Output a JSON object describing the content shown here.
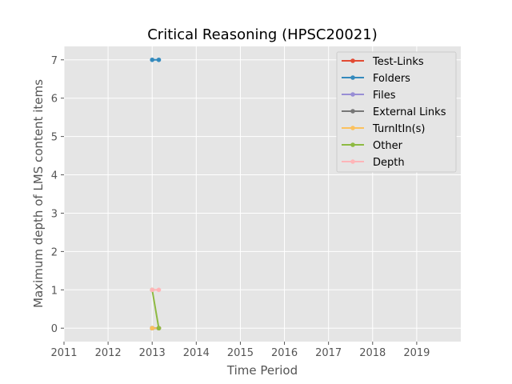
{
  "chart_data": {
    "type": "line",
    "title": "Critical Reasoning (HPSC20021)",
    "xlabel": "Time Period",
    "ylabel": "Maximum depth of LMS content items",
    "xlim": [
      2011,
      2020
    ],
    "ylim": [
      -0.35,
      7.35
    ],
    "x_ticks": [
      "2011",
      "2012",
      "2013",
      "2014",
      "2015",
      "2016",
      "2017",
      "2018",
      "2019"
    ],
    "y_ticks": [
      "0",
      "1",
      "2",
      "3",
      "4",
      "5",
      "6",
      "7"
    ],
    "grid": true,
    "legend_position": "top-right",
    "series": [
      {
        "name": "Test-Links",
        "color": "#e24a33",
        "x": [
          2013.0,
          2013.15
        ],
        "y": [
          0,
          0
        ]
      },
      {
        "name": "Folders",
        "color": "#348abd",
        "x": [
          2013.0,
          2013.15
        ],
        "y": [
          7,
          7
        ]
      },
      {
        "name": "Files",
        "color": "#988ed5",
        "x": [
          2013.0,
          2013.15
        ],
        "y": [
          0,
          0
        ]
      },
      {
        "name": "External Links",
        "color": "#777777",
        "x": [
          2013.0,
          2013.15
        ],
        "y": [
          0,
          0
        ]
      },
      {
        "name": "TurnItIn(s)",
        "color": "#fbc15e",
        "x": [
          2013.0,
          2013.15
        ],
        "y": [
          0,
          0
        ]
      },
      {
        "name": "Other",
        "color": "#8eba42",
        "x": [
          2013.0,
          2013.15
        ],
        "y": [
          1,
          0
        ]
      },
      {
        "name": "Depth",
        "color": "#ffb5b8",
        "x": [
          2013.0,
          2013.15
        ],
        "y": [
          1,
          1
        ]
      }
    ]
  }
}
